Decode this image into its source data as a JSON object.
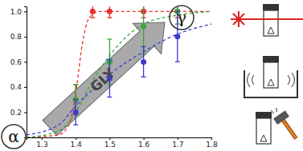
{
  "chart_data": {
    "type": "scatter",
    "xlim": [
      1.255,
      1.8
    ],
    "xticks": [
      1.3,
      1.4,
      1.5,
      1.6,
      1.7,
      1.8
    ],
    "ylim": [
      0,
      1.04
    ],
    "yticks": [
      0.2,
      0.4,
      0.6,
      0.8,
      {
        "value": 1,
        "label": "1.0"
      }
    ],
    "annotations": [
      {
        "text": "α"
      },
      {
        "text": "γ"
      },
      {
        "text": "GLY"
      }
    ],
    "series": [
      {
        "color": "#e8312a",
        "marker": "circle",
        "x": [
          1.4,
          1.45,
          1.5,
          1.6,
          1.7
        ],
        "values": [
          0.3,
          1.0,
          1.0,
          1.0,
          1.0
        ],
        "errors": [
          0.12,
          0.05,
          0.05,
          0.05,
          0.05
        ]
      },
      {
        "color": "#3aa63a",
        "marker": "circle",
        "x": [
          1.4,
          1.5,
          1.6,
          1.7
        ],
        "values": [
          0.3,
          0.6,
          0.88,
          1.0
        ],
        "errors": [
          0.12,
          0.18,
          0.22,
          0.1
        ]
      },
      {
        "color": "#3b3bd0",
        "marker": "circle",
        "x": [
          1.4,
          1.5,
          1.6,
          1.7
        ],
        "values": [
          0.2,
          0.47,
          0.6,
          0.8
        ],
        "errors": [
          0.1,
          0.15,
          0.12,
          0.2
        ]
      },
      {
        "type": "line",
        "line_style": "dashed",
        "color": "#e8312a",
        "x": [
          1.255,
          1.35,
          1.38,
          1.4,
          1.42,
          1.44,
          1.47,
          1.8
        ],
        "values": [
          0.0,
          0.02,
          0.1,
          0.35,
          0.75,
          0.95,
          1.0,
          1.0
        ]
      },
      {
        "type": "line",
        "line_style": "dashed",
        "color": "#3aa63a",
        "x": [
          1.255,
          1.35,
          1.4,
          1.45,
          1.5,
          1.55,
          1.6,
          1.7,
          1.8
        ],
        "values": [
          0.0,
          0.05,
          0.2,
          0.45,
          0.65,
          0.8,
          0.9,
          0.97,
          1.0
        ]
      },
      {
        "type": "line",
        "line_style": "dashed",
        "color": "#3b3bd0",
        "x": [
          1.255,
          1.35,
          1.4,
          1.45,
          1.5,
          1.6,
          1.7,
          1.8
        ],
        "values": [
          0.02,
          0.1,
          0.25,
          0.38,
          0.5,
          0.68,
          0.82,
          0.9
        ]
      }
    ]
  }
}
